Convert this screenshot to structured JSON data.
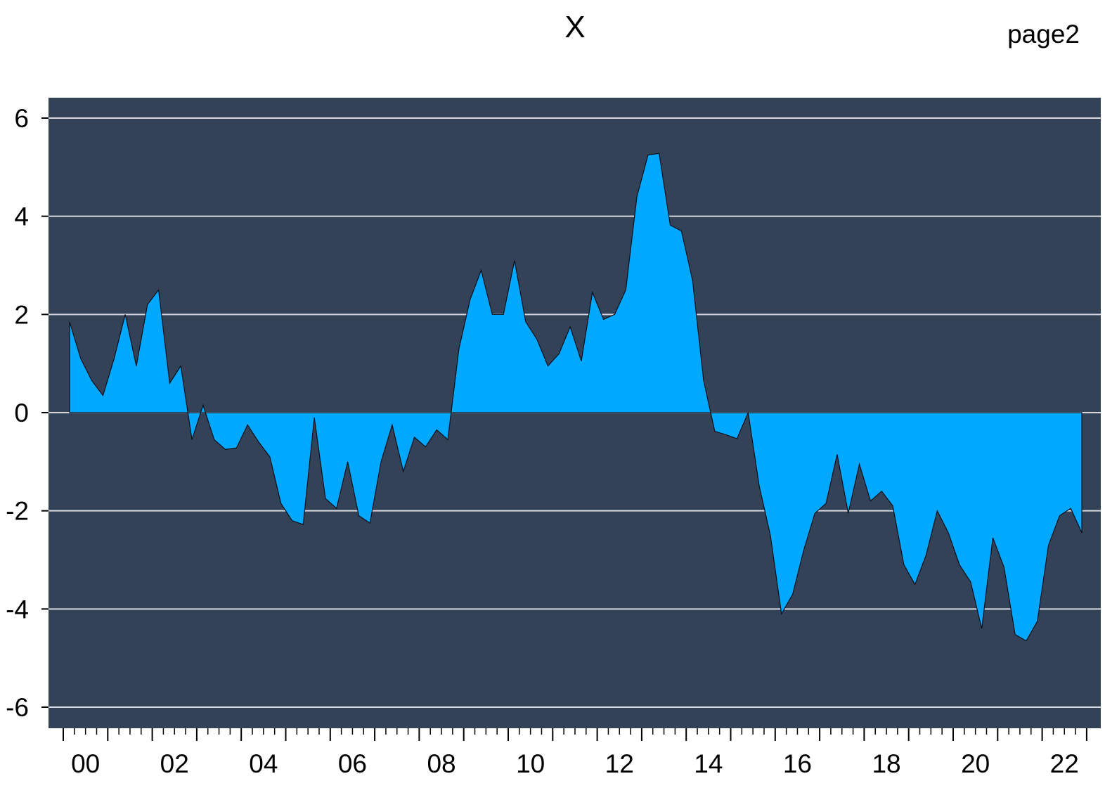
{
  "page_label": "page2",
  "chart_data": {
    "type": "area",
    "title": "X",
    "xlabel": "",
    "ylabel": "",
    "x_start_year": 2000,
    "frequency": "quarterly",
    "x_tick_labels": [
      "00",
      "02",
      "04",
      "06",
      "08",
      "10",
      "12",
      "14",
      "16",
      "18",
      "20",
      "22"
    ],
    "y_tick_labels": [
      "6",
      "4",
      "2",
      "0",
      "-2",
      "-4",
      "-6"
    ],
    "ylim": [
      -6.45,
      6.45
    ],
    "xlim": [
      "2000Q1",
      "2023Q1"
    ],
    "grid": true,
    "colors": {
      "plot_background": "#334257",
      "area_fill": "#00A8FF",
      "area_outline": "#0A0F1A",
      "gridline": "#D9D9E1",
      "axis": "#000000"
    },
    "series": [
      {
        "x": [
          "2000Q1",
          "2000Q2",
          "2000Q3",
          "2000Q4",
          "2001Q1",
          "2001Q2",
          "2001Q3",
          "2001Q4",
          "2002Q1",
          "2002Q2",
          "2002Q3",
          "2002Q4",
          "2003Q1",
          "2003Q2",
          "2003Q3",
          "2003Q4",
          "2004Q1",
          "2004Q2",
          "2004Q3",
          "2004Q4",
          "2005Q1",
          "2005Q2",
          "2005Q3",
          "2005Q4",
          "2006Q1",
          "2006Q2",
          "2006Q3",
          "2006Q4",
          "2007Q1",
          "2007Q2",
          "2007Q3",
          "2007Q4",
          "2008Q1",
          "2008Q2",
          "2008Q3",
          "2008Q4",
          "2009Q1",
          "2009Q2",
          "2009Q3",
          "2009Q4",
          "2010Q1",
          "2010Q2",
          "2010Q3",
          "2010Q4",
          "2011Q1",
          "2011Q2",
          "2011Q3",
          "2011Q4",
          "2012Q1",
          "2012Q2",
          "2012Q3",
          "2012Q4",
          "2013Q1",
          "2013Q2",
          "2013Q3",
          "2013Q4",
          "2014Q1",
          "2014Q2",
          "2014Q3",
          "2014Q4",
          "2015Q1",
          "2015Q2",
          "2015Q3",
          "2015Q4",
          "2016Q1",
          "2016Q2",
          "2016Q3",
          "2016Q4",
          "2017Q1",
          "2017Q2",
          "2017Q3",
          "2017Q4",
          "2018Q1",
          "2018Q2",
          "2018Q3",
          "2018Q4",
          "2019Q1",
          "2019Q2",
          "2019Q3",
          "2019Q4",
          "2020Q1",
          "2020Q2",
          "2020Q3",
          "2020Q4",
          "2021Q1",
          "2021Q2",
          "2021Q3",
          "2021Q4",
          "2022Q1",
          "2022Q2",
          "2022Q3",
          "2022Q4"
        ],
        "values": [
          1.85,
          1.1,
          0.65,
          0.35,
          1.1,
          2.0,
          0.95,
          2.2,
          2.5,
          0.6,
          0.95,
          -0.55,
          0.15,
          -0.55,
          -0.75,
          -0.72,
          -0.25,
          -0.6,
          -0.9,
          -1.85,
          -2.2,
          -2.28,
          -0.1,
          -1.75,
          -1.95,
          -1.0,
          -2.1,
          -2.25,
          -1.0,
          -0.25,
          -1.2,
          -0.5,
          -0.7,
          -0.35,
          -0.55,
          1.3,
          2.3,
          2.9,
          2.0,
          2.0,
          3.1,
          1.85,
          1.5,
          0.95,
          1.2,
          1.75,
          1.05,
          2.45,
          1.9,
          2.0,
          2.5,
          4.4,
          5.25,
          5.28,
          3.82,
          3.7,
          2.7,
          0.65,
          -0.38,
          -0.45,
          -0.53,
          0.0,
          -1.5,
          -2.5,
          -4.1,
          -3.7,
          -2.8,
          -2.05,
          -1.85,
          -0.85,
          -2.05,
          -1.05,
          -1.8,
          -1.6,
          -1.9,
          -3.1,
          -3.5,
          -2.9,
          -2.0,
          -2.45,
          -3.1,
          -3.45,
          -4.4,
          -2.55,
          -3.15,
          -4.52,
          -4.65,
          -4.25,
          -2.7,
          -2.1,
          -1.95,
          -2.45
        ]
      }
    ]
  }
}
